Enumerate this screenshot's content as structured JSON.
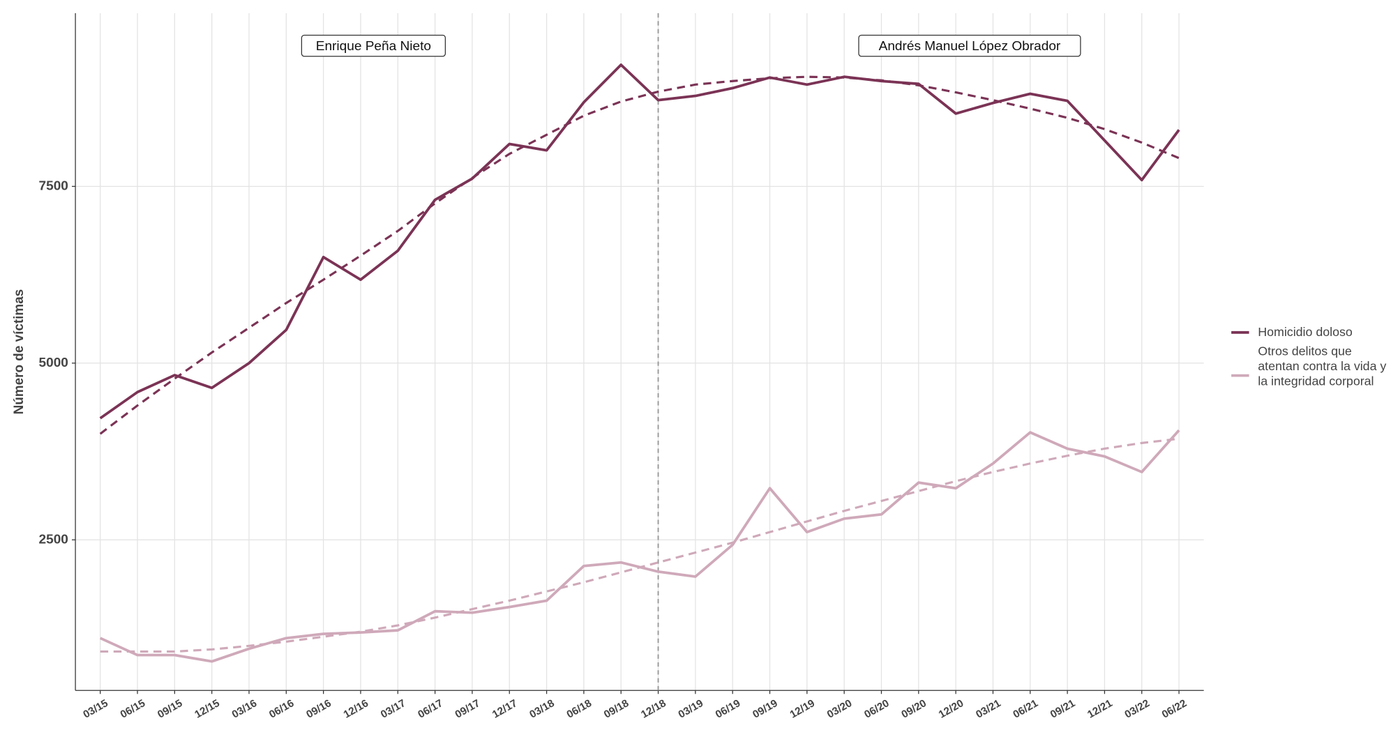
{
  "chart_data": {
    "type": "line",
    "y_label": "Número de víctimas",
    "categories": [
      "03/15",
      "06/15",
      "09/15",
      "12/15",
      "03/16",
      "06/16",
      "09/16",
      "12/16",
      "03/17",
      "06/17",
      "09/17",
      "12/17",
      "03/18",
      "06/18",
      "09/18",
      "12/18",
      "03/19",
      "06/19",
      "09/19",
      "12/19",
      "03/20",
      "06/20",
      "09/20",
      "12/20",
      "03/21",
      "06/21",
      "09/21",
      "12/21",
      "03/22",
      "06/22"
    ],
    "series": [
      {
        "name": "Homicidio doloso",
        "color": "#7b3355",
        "values": [
          4220,
          4590,
          4830,
          4650,
          5000,
          5470,
          6500,
          6180,
          6590,
          7310,
          7610,
          8100,
          8010,
          8690,
          9220,
          8720,
          8780,
          8890,
          9040,
          8940,
          9050,
          8990,
          8950,
          8530,
          8680,
          8810,
          8710,
          8150,
          7590,
          8300
        ],
        "trend": [
          4000,
          4400,
          4780,
          5150,
          5500,
          5850,
          6180,
          6520,
          6870,
          7260,
          7620,
          7960,
          8230,
          8500,
          8700,
          8840,
          8940,
          8990,
          9030,
          9050,
          9040,
          9000,
          8930,
          8830,
          8720,
          8600,
          8470,
          8310,
          8120,
          7900
        ]
      },
      {
        "name": "Otros delitos que atentan contra la vida y la integridad corporal",
        "color": "#cfa9b9",
        "values": [
          1110,
          870,
          870,
          780,
          960,
          1110,
          1170,
          1190,
          1220,
          1490,
          1470,
          1550,
          1640,
          2130,
          2180,
          2050,
          1980,
          2430,
          3230,
          2610,
          2800,
          2860,
          3310,
          3230,
          3580,
          4020,
          3790,
          3680,
          3460,
          4050
        ],
        "trend": [
          920,
          920,
          920,
          950,
          1000,
          1060,
          1130,
          1200,
          1290,
          1400,
          1520,
          1640,
          1770,
          1900,
          2040,
          2180,
          2320,
          2460,
          2610,
          2760,
          2910,
          3050,
          3190,
          3330,
          3460,
          3580,
          3690,
          3790,
          3870,
          3930
        ]
      }
    ],
    "annotations": [
      "Enrique Peña Nieto",
      "Andrés Manuel López Obrador"
    ],
    "divider_at": "12/18",
    "ylim": [
      370,
      9950
    ],
    "yticks": [
      2500,
      5000,
      7500
    ],
    "grid": true,
    "legend": "right"
  }
}
